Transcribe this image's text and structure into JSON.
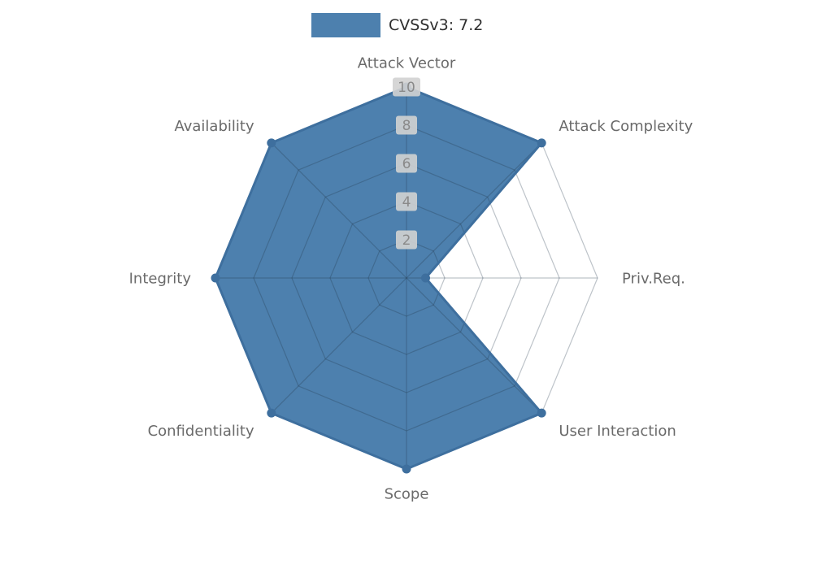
{
  "legend": {
    "label": "CVSSv3: 7.2"
  },
  "chart_data": {
    "type": "radar",
    "title": "CVSSv3: 7.2",
    "categories": [
      "Attack Vector",
      "Attack Complexity",
      "Priv.Req.",
      "User Interaction",
      "Scope",
      "Confidentiality",
      "Integrity",
      "Availability"
    ],
    "series": [
      {
        "name": "CVSSv3: 7.2",
        "values": [
          10,
          10,
          1,
          10,
          10,
          10,
          10,
          10
        ]
      }
    ],
    "ticks": [
      2,
      4,
      6,
      8,
      10
    ],
    "rlim": [
      0,
      10
    ],
    "grid": true,
    "legend_position": "top-center",
    "colors": {
      "fill": "#4d80ae",
      "edge": "#3e6f9e",
      "grid_line": "rgba(35,55,75,0.30)",
      "axis_label": "#6a6a6a",
      "tick_text": "#8a8a8a",
      "tick_box": "#d2d2d2",
      "legend_text": "#2e2e2e"
    }
  }
}
